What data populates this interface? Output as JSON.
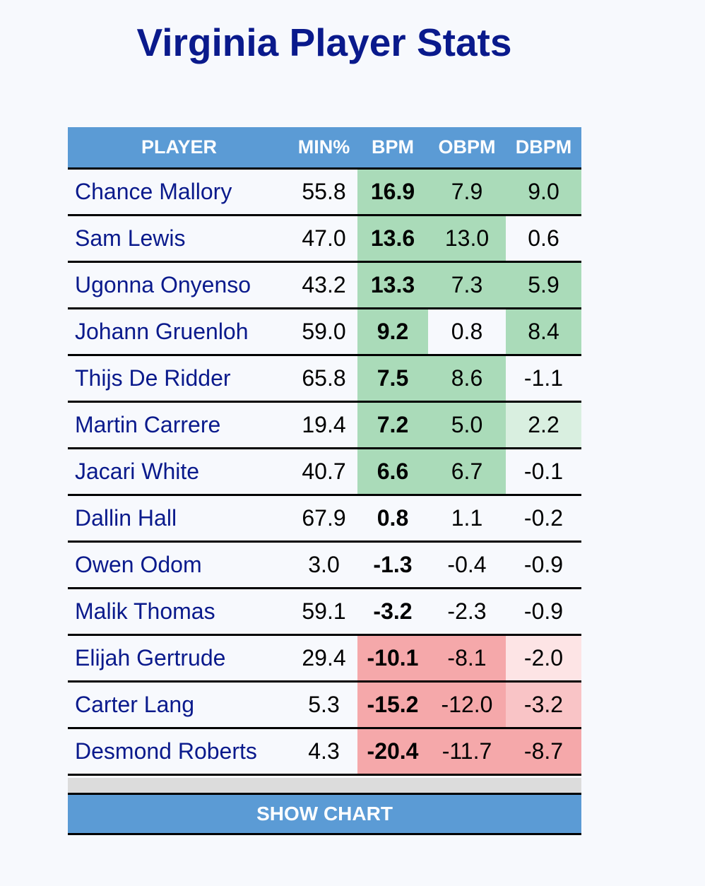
{
  "page": {
    "title": "Virginia Player Stats"
  },
  "table": {
    "headers": [
      "PLAYER",
      "MIN%",
      "BPM",
      "OBPM",
      "DBPM"
    ],
    "rows": [
      {
        "player": "Chance Mallory",
        "min": "55.8",
        "bpm": "16.9",
        "obpm": "7.9",
        "dbpm": "9.0"
      },
      {
        "player": "Sam Lewis",
        "min": "47.0",
        "bpm": "13.6",
        "obpm": "13.0",
        "dbpm": "0.6"
      },
      {
        "player": "Ugonna Onyenso",
        "min": "43.2",
        "bpm": "13.3",
        "obpm": "7.3",
        "dbpm": "5.9"
      },
      {
        "player": "Johann Gruenloh",
        "min": "59.0",
        "bpm": "9.2",
        "obpm": "0.8",
        "dbpm": "8.4"
      },
      {
        "player": "Thijs De Ridder",
        "min": "65.8",
        "bpm": "7.5",
        "obpm": "8.6",
        "dbpm": "-1.1"
      },
      {
        "player": "Martin Carrere",
        "min": "19.4",
        "bpm": "7.2",
        "obpm": "5.0",
        "dbpm": "2.2"
      },
      {
        "player": "Jacari White",
        "min": "40.7",
        "bpm": "6.6",
        "obpm": "6.7",
        "dbpm": "-0.1"
      },
      {
        "player": "Dallin Hall",
        "min": "67.9",
        "bpm": "0.8",
        "obpm": "1.1",
        "dbpm": "-0.2"
      },
      {
        "player": "Owen Odom",
        "min": "3.0",
        "bpm": "-1.3",
        "obpm": "-0.4",
        "dbpm": "-0.9"
      },
      {
        "player": "Malik Thomas",
        "min": "59.1",
        "bpm": "-3.2",
        "obpm": "-2.3",
        "dbpm": "-0.9"
      },
      {
        "player": "Elijah Gertrude",
        "min": "29.4",
        "bpm": "-10.1",
        "obpm": "-8.1",
        "dbpm": "-2.0"
      },
      {
        "player": "Carter Lang",
        "min": "5.3",
        "bpm": "-15.2",
        "obpm": "-12.0",
        "dbpm": "-3.2"
      },
      {
        "player": "Desmond Roberts",
        "min": "4.3",
        "bpm": "-20.4",
        "obpm": "-11.7",
        "dbpm": "-8.7"
      }
    ]
  },
  "colors": {
    "header_bg": "#5b9bd5",
    "title_color": "#0a1a8c",
    "positive_strong": "#aadbb9",
    "positive_light": "#d9efe0",
    "negative_strong": "#f5a8aa",
    "negative_mid": "#f9c4c6",
    "negative_light": "#fde4e5"
  },
  "button": {
    "show_chart_label": "SHOW CHART"
  }
}
